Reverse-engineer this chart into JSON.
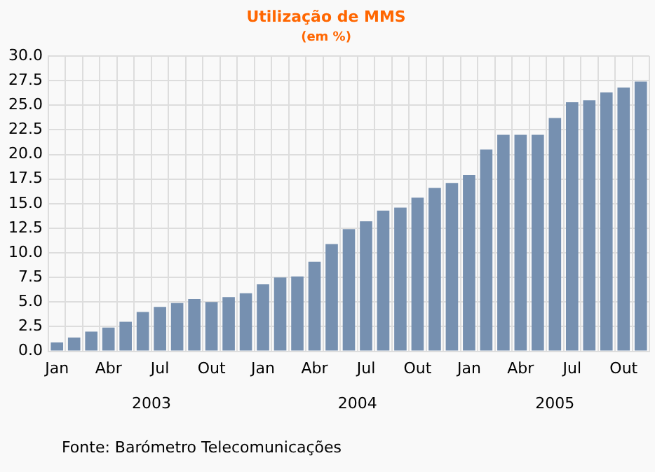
{
  "chart_data": {
    "type": "bar",
    "title": "Utilização de MMS",
    "subtitle": "(em %)",
    "categories": [
      "Jan",
      null,
      null,
      "Abr",
      null,
      null,
      "Jul",
      null,
      null,
      "Out",
      null,
      null,
      "Jan",
      null,
      null,
      "Abr",
      null,
      null,
      "Jul",
      null,
      null,
      "Out",
      null,
      null,
      "Jan",
      null,
      null,
      "Abr",
      null,
      null,
      "Jul",
      null,
      null,
      "Out",
      null
    ],
    "values": [
      0.9,
      1.4,
      2.0,
      2.4,
      3.0,
      4.0,
      4.5,
      4.9,
      5.3,
      5.0,
      5.5,
      5.9,
      6.8,
      7.5,
      7.6,
      9.1,
      10.9,
      12.4,
      13.2,
      14.3,
      14.6,
      15.6,
      16.6,
      17.1,
      17.9,
      20.5,
      22.0,
      22.0,
      22.0,
      23.7,
      25.3,
      25.5,
      26.3,
      26.8,
      27.4
    ],
    "color": "#7690b0",
    "ylim": [
      0,
      30
    ],
    "yticks": [
      {
        "value": 0,
        "label": "0.0"
      },
      {
        "value": 2.5,
        "label": "2.5"
      },
      {
        "value": 5,
        "label": "5.0"
      },
      {
        "value": 7.5,
        "label": "7.5"
      },
      {
        "value": 10,
        "label": "10.0"
      },
      {
        "value": 12.5,
        "label": "12.5"
      },
      {
        "value": 15,
        "label": "15.0"
      },
      {
        "value": 17.5,
        "label": "17.5"
      },
      {
        "value": 20,
        "label": "20.0"
      },
      {
        "value": 22.5,
        "label": "22.5"
      },
      {
        "value": 25,
        "label": "25.0"
      },
      {
        "value": 27.5,
        "label": "27.5"
      },
      {
        "value": 30,
        "label": "30.0"
      }
    ],
    "grid": true,
    "annotations": [
      "2003",
      "2004",
      "2005",
      "Fonte: Barómetro Telecomunicações"
    ]
  }
}
